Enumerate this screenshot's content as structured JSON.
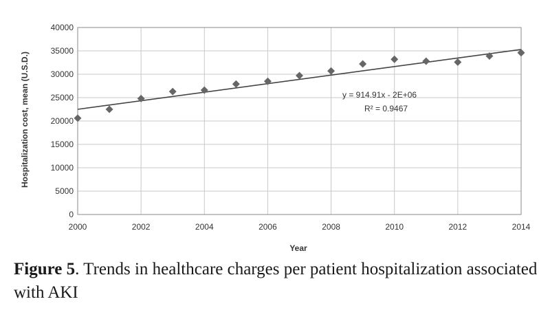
{
  "chart_data": {
    "type": "scatter",
    "xlabel": "Year",
    "ylabel": "Hospitalization cost, mean (U.S.D.)",
    "xlim": [
      2000,
      2014
    ],
    "ylim": [
      0,
      40000
    ],
    "xticks": [
      "2000",
      "2002",
      "2004",
      "2006",
      "2008",
      "2010",
      "2012",
      "2014"
    ],
    "yticks": [
      "0",
      "5000",
      "10000",
      "15000",
      "20000",
      "25000",
      "30000",
      "35000",
      "40000"
    ],
    "grid": true,
    "legend": "none",
    "series": [
      {
        "x": [
          2000,
          2001,
          2002,
          2003,
          2004,
          2005,
          2006,
          2007,
          2008,
          2009,
          2010,
          2011,
          2012,
          2013,
          2014
        ],
        "y": [
          20600,
          22500,
          24800,
          26300,
          26600,
          27900,
          28500,
          29700,
          30700,
          32200,
          33200,
          32800,
          32600,
          33900,
          34600
        ]
      }
    ],
    "trendline": {
      "type": "linear",
      "x": [
        2000,
        2014
      ],
      "y": [
        22500,
        35300
      ],
      "equation": "y = 914.91x - 2E+06",
      "r_squared": "R² = 0.9467"
    },
    "colors": {
      "marker": "#666666",
      "line": "#444444",
      "grid": "#c8c8c8"
    }
  },
  "caption": {
    "label": "Figure 5",
    "text": ". Trends in healthcare charges per patient hospitalization associated with AKI"
  }
}
